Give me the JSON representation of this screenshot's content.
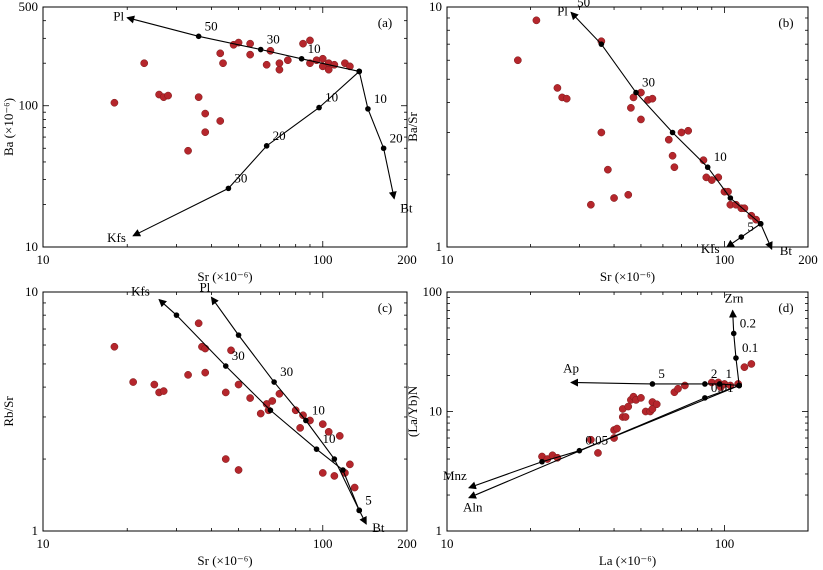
{
  "chart_data": [
    {
      "type": "scatter",
      "panel_label": "(a)",
      "xlabel": "Sr (×10⁻⁶)",
      "ylabel": "Ba (×10⁻⁶)",
      "xscale": "log",
      "yscale": "log",
      "xlim": [
        10,
        200
      ],
      "ylim": [
        10,
        500
      ],
      "xticks": [
        {
          "v": 10,
          "label": "10"
        },
        {
          "v": 100,
          "label": "100"
        },
        {
          "v": 200,
          "label": "200"
        }
      ],
      "yticks": [
        {
          "v": 10,
          "label": "10"
        },
        {
          "v": 100,
          "label": "100"
        },
        {
          "v": 500,
          "label": "500"
        }
      ],
      "origin": [
        135,
        175
      ],
      "samples": [
        [
          18,
          105
        ],
        [
          23,
          200
        ],
        [
          26,
          120
        ],
        [
          27,
          115
        ],
        [
          28,
          118
        ],
        [
          33,
          48
        ],
        [
          36,
          115
        ],
        [
          38,
          65
        ],
        [
          38,
          88
        ],
        [
          43,
          78
        ],
        [
          43,
          235
        ],
        [
          44,
          200
        ],
        [
          48,
          270
        ],
        [
          50,
          280
        ],
        [
          55,
          230
        ],
        [
          55,
          275
        ],
        [
          63,
          195
        ],
        [
          65,
          245
        ],
        [
          70,
          180
        ],
        [
          70,
          200
        ],
        [
          75,
          210
        ],
        [
          85,
          275
        ],
        [
          90,
          290
        ],
        [
          90,
          200
        ],
        [
          95,
          210
        ],
        [
          100,
          215
        ],
        [
          100,
          190
        ],
        [
          105,
          180
        ],
        [
          105,
          200
        ],
        [
          110,
          195
        ],
        [
          120,
          200
        ],
        [
          125,
          190
        ]
      ],
      "vectors": [
        {
          "name": "Pl",
          "points": [
            [
              135,
              175
            ],
            [
              84,
              215
            ],
            [
              60,
              250
            ],
            [
              36,
              310
            ],
            [
              20,
              420
            ]
          ],
          "tick_labels": [
            {
              "i": 1,
              "label": "10"
            },
            {
              "i": 2,
              "label": "30"
            },
            {
              "i": 3,
              "label": "50"
            }
          ]
        },
        {
          "name": "Bt",
          "points": [
            [
              135,
              175
            ],
            [
              145,
              95
            ],
            [
              165,
              50
            ],
            [
              180,
              22
            ]
          ],
          "tick_labels": [
            {
              "i": 1,
              "label": "10"
            },
            {
              "i": 2,
              "label": "20"
            }
          ]
        },
        {
          "name": "Kfs",
          "points": [
            [
              135,
              175
            ],
            [
              97,
              97
            ],
            [
              63,
              52
            ],
            [
              46,
              26
            ],
            [
              21,
              12
            ]
          ],
          "tick_labels": [
            {
              "i": 1,
              "label": "10"
            },
            {
              "i": 2,
              "label": "20"
            },
            {
              "i": 3,
              "label": "30"
            }
          ]
        }
      ]
    },
    {
      "type": "scatter",
      "panel_label": "(b)",
      "xlabel": "Sr (×10⁻⁶)",
      "ylabel": "Ba/Sr",
      "xscale": "log",
      "yscale": "log",
      "xlim": [
        10,
        200
      ],
      "ylim": [
        1,
        10
      ],
      "xticks": [
        {
          "v": 10,
          "label": "10"
        },
        {
          "v": 100,
          "label": "100"
        },
        {
          "v": 200,
          "label": "200"
        }
      ],
      "yticks": [
        {
          "v": 1,
          "label": "1"
        },
        {
          "v": 10,
          "label": "10"
        }
      ],
      "origin": [
        135,
        1.25
      ],
      "samples": [
        [
          18,
          6.0
        ],
        [
          21,
          8.8
        ],
        [
          25,
          4.6
        ],
        [
          26,
          4.2
        ],
        [
          27,
          4.15
        ],
        [
          33,
          1.5
        ],
        [
          36,
          3.0
        ],
        [
          36,
          7.2
        ],
        [
          38,
          2.1
        ],
        [
          40,
          1.6
        ],
        [
          45,
          1.65
        ],
        [
          46,
          3.8
        ],
        [
          47,
          4.2
        ],
        [
          50,
          3.4
        ],
        [
          50,
          4.4
        ],
        [
          53,
          4.1
        ],
        [
          55,
          4.15
        ],
        [
          63,
          2.8
        ],
        [
          65,
          2.4
        ],
        [
          66,
          2.15
        ],
        [
          70,
          3.0
        ],
        [
          74,
          3.05
        ],
        [
          84,
          2.3
        ],
        [
          86,
          1.95
        ],
        [
          90,
          1.9
        ],
        [
          95,
          1.95
        ],
        [
          100,
          1.7
        ],
        [
          103,
          1.7
        ],
        [
          105,
          1.5
        ],
        [
          110,
          1.5
        ],
        [
          115,
          1.45
        ],
        [
          118,
          1.45
        ],
        [
          125,
          1.35
        ],
        [
          130,
          1.3
        ]
      ],
      "vectors": [
        {
          "name": "Pl",
          "points": [
            [
              135,
              1.25
            ],
            [
              105,
              1.6
            ],
            [
              87,
              2.15
            ],
            [
              65,
              3.0
            ],
            [
              48,
              4.4
            ],
            [
              36,
              7.0
            ],
            [
              28,
              9.5
            ]
          ],
          "tick_labels": [
            {
              "i": 2,
              "label": "10"
            },
            {
              "i": 4,
              "label": "30"
            },
            {
              "i": 6,
              "label": "50"
            }
          ]
        },
        {
          "name": "Bt",
          "points": [
            [
              135,
              1.25
            ],
            [
              148,
              0.98
            ]
          ],
          "tick_labels": []
        },
        {
          "name": "Kfs",
          "points": [
            [
              135,
              1.25
            ],
            [
              115,
              1.1
            ],
            [
              102,
              1.0
            ]
          ],
          "tick_labels": [
            {
              "i": 1,
              "label": "5"
            }
          ]
        }
      ]
    },
    {
      "type": "scatter",
      "panel_label": "(c)",
      "xlabel": "Sr (×10⁻⁶)",
      "ylabel": "Rb/Sr",
      "xscale": "log",
      "yscale": "log",
      "xlim": [
        10,
        200
      ],
      "ylim": [
        1,
        10
      ],
      "xticks": [
        {
          "v": 10,
          "label": "10"
        },
        {
          "v": 100,
          "label": "100"
        },
        {
          "v": 200,
          "label": "200"
        }
      ],
      "yticks": [
        {
          "v": 1,
          "label": "1"
        },
        {
          "v": 10,
          "label": "10"
        }
      ],
      "origin": [
        135,
        1.22
      ],
      "samples": [
        [
          18,
          5.9
        ],
        [
          21,
          4.2
        ],
        [
          25,
          4.1
        ],
        [
          26,
          3.8
        ],
        [
          27,
          3.85
        ],
        [
          33,
          4.5
        ],
        [
          36,
          7.4
        ],
        [
          37,
          5.9
        ],
        [
          38,
          5.8
        ],
        [
          38,
          4.6
        ],
        [
          45,
          3.8
        ],
        [
          45,
          2.0
        ],
        [
          47,
          5.7
        ],
        [
          50,
          1.8
        ],
        [
          50,
          4.1
        ],
        [
          55,
          3.6
        ],
        [
          60,
          3.1
        ],
        [
          63,
          3.4
        ],
        [
          64,
          3.2
        ],
        [
          66,
          3.5
        ],
        [
          70,
          3.75
        ],
        [
          80,
          3.2
        ],
        [
          83,
          2.7
        ],
        [
          85,
          3.05
        ],
        [
          90,
          2.9
        ],
        [
          100,
          2.8
        ],
        [
          100,
          1.75
        ],
        [
          105,
          2.6
        ],
        [
          110,
          1.7
        ],
        [
          115,
          2.5
        ],
        [
          120,
          1.75
        ],
        [
          125,
          1.9
        ],
        [
          130,
          1.52
        ]
      ],
      "vectors": [
        {
          "name": "Pl",
          "points": [
            [
              135,
              1.22
            ],
            [
              110,
              2.0
            ],
            [
              87,
              2.9
            ],
            [
              67,
              4.2
            ],
            [
              50,
              6.6
            ],
            [
              40,
              9.5
            ]
          ],
          "tick_labels": [
            {
              "i": 2,
              "label": "10"
            },
            {
              "i": 3,
              "label": "30"
            }
          ]
        },
        {
          "name": "Kfs",
          "points": [
            [
              135,
              1.22
            ],
            [
              118,
              1.8
            ],
            [
              95,
              2.2
            ],
            [
              65,
              3.2
            ],
            [
              45,
              4.9
            ],
            [
              30,
              8.0
            ],
            [
              26,
              9.3
            ]
          ],
          "tick_labels": [
            {
              "i": 4,
              "label": "30"
            },
            {
              "i": 2,
              "label": "10"
            },
            {
              "i": 0,
              "label": "5"
            }
          ]
        },
        {
          "name": "Bt",
          "points": [
            [
              135,
              1.22
            ],
            [
              143,
              1.07
            ]
          ],
          "tick_labels": []
        }
      ]
    },
    {
      "type": "scatter",
      "panel_label": "(d)",
      "xlabel": "La (×10⁻⁶)",
      "ylabel": "(La/Yb)N",
      "xscale": "log",
      "yscale": "log",
      "xlim": [
        10,
        200
      ],
      "ylim": [
        1,
        100
      ],
      "xticks": [
        {
          "v": 10,
          "label": "10"
        },
        {
          "v": 100,
          "label": "100"
        }
      ],
      "yticks": [
        {
          "v": 1,
          "label": "1"
        },
        {
          "v": 10,
          "label": "10"
        },
        {
          "v": 100,
          "label": "100"
        }
      ],
      "origin": [
        113,
        16.5
      ],
      "samples": [
        [
          22,
          4.2
        ],
        [
          23,
          4.0
        ],
        [
          24,
          4.3
        ],
        [
          25,
          4.1
        ],
        [
          33,
          5.8
        ],
        [
          35,
          4.5
        ],
        [
          40,
          6.0
        ],
        [
          40,
          7.0
        ],
        [
          41,
          7.2
        ],
        [
          43,
          9.0
        ],
        [
          43,
          10.5
        ],
        [
          44,
          9.0
        ],
        [
          45,
          11.0
        ],
        [
          46,
          12.5
        ],
        [
          47,
          13.3
        ],
        [
          48,
          12.5
        ],
        [
          50,
          13.0
        ],
        [
          52,
          10.0
        ],
        [
          54,
          10.0
        ],
        [
          55,
          12.0
        ],
        [
          55,
          10.5
        ],
        [
          57,
          11.5
        ],
        [
          66,
          14.5
        ],
        [
          68,
          15.5
        ],
        [
          72,
          16.5
        ],
        [
          90,
          17.5
        ],
        [
          95,
          17.5
        ],
        [
          97,
          16.0
        ],
        [
          100,
          17.0
        ],
        [
          105,
          16.5
        ],
        [
          112,
          17.0
        ],
        [
          118,
          23.5
        ],
        [
          125,
          25.0
        ]
      ],
      "vectors": [
        {
          "name": "Zrn",
          "points": [
            [
              113,
              16.5
            ],
            [
              110,
              28
            ],
            [
              108,
              45
            ],
            [
              107,
              70
            ]
          ],
          "tick_labels": [
            {
              "i": 1,
              "label": "0.1"
            },
            {
              "i": 2,
              "label": "0.2"
            }
          ]
        },
        {
          "name": "Ap",
          "points": [
            [
              113,
              16.5
            ],
            [
              96,
              17
            ],
            [
              85,
              17
            ],
            [
              55,
              17
            ],
            [
              28,
              17.5
            ]
          ],
          "tick_labels": [
            {
              "i": 1,
              "label": "1"
            },
            {
              "i": 2,
              "label": "2"
            },
            {
              "i": 3,
              "label": "5"
            }
          ]
        },
        {
          "name": "Mnz",
          "points": [
            [
              113,
              16.5
            ],
            [
              30,
              4.7
            ],
            [
              22,
              3.8
            ],
            [
              12,
              2.3
            ]
          ],
          "tick_labels": [
            {
              "i": 1,
              "label": "0.05"
            }
          ]
        },
        {
          "name": "Aln",
          "points": [
            [
              113,
              16.5
            ],
            [
              85,
              13
            ],
            [
              12,
              1.9
            ]
          ],
          "tick_labels": [
            {
              "i": 1,
              "label": "0.01"
            }
          ]
        }
      ]
    }
  ],
  "colors": {
    "sample": "#b5262c",
    "sample_edge": "#7a1a1a",
    "line": "#000000",
    "axis": "#000000"
  }
}
